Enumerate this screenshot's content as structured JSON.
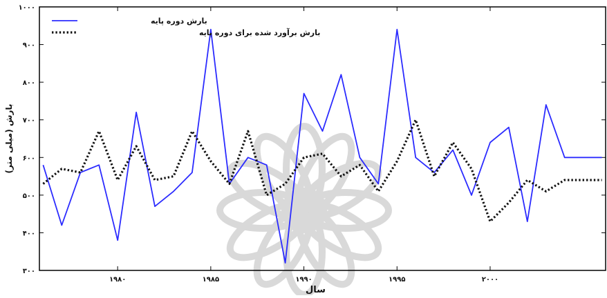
{
  "chart_data": {
    "type": "line",
    "xlabel": "سال",
    "ylabel": "بارش (میلی متر)",
    "xlim": [
      1975.8,
      2006.2
    ],
    "ylim": [
      300,
      1000
    ],
    "xticks": [
      1980,
      1985,
      1990,
      1995,
      2000
    ],
    "xtick_labels": [
      "۱۹۸۰",
      "۱۹۸۵",
      "۱۹۹۰",
      "۱۹۹۵",
      "۲۰۰۰"
    ],
    "yticks": [
      300,
      400,
      500,
      600,
      700,
      800,
      900,
      1000
    ],
    "ytick_labels": [
      "۳۰۰",
      "۴۰۰",
      "۵۰۰",
      "۶۰۰",
      "۷۰۰",
      "۸۰۰",
      "۹۰۰",
      "۱۰۰۰"
    ],
    "grid": false,
    "legend_position": "top-left",
    "x": [
      1976,
      1977,
      1978,
      1979,
      1980,
      1981,
      1982,
      1983,
      1984,
      1985,
      1986,
      1987,
      1988,
      1989,
      1990,
      1991,
      1992,
      1993,
      1994,
      1995,
      1996,
      1997,
      1998,
      1999,
      2000,
      2001,
      2002,
      2003,
      2004,
      2005,
      2006
    ],
    "series": [
      {
        "name": "بارش دوره پایه",
        "color": "#2b2bff",
        "style": "solid",
        "values": [
          580,
          420,
          560,
          580,
          380,
          720,
          470,
          510,
          560,
          940,
          530,
          600,
          580,
          320,
          770,
          670,
          820,
          600,
          530,
          940,
          600,
          560,
          620,
          500,
          640,
          680,
          430,
          740,
          600,
          600,
          600
        ]
      },
      {
        "name": "بارش برآورد شده برای دوره پایه",
        "color": "#111111",
        "style": "dotted",
        "values": [
          530,
          570,
          560,
          670,
          540,
          630,
          540,
          550,
          670,
          590,
          530,
          670,
          500,
          530,
          600,
          610,
          550,
          580,
          510,
          590,
          700,
          550,
          640,
          570,
          430,
          480,
          540,
          510,
          540,
          540,
          540
        ]
      }
    ]
  }
}
